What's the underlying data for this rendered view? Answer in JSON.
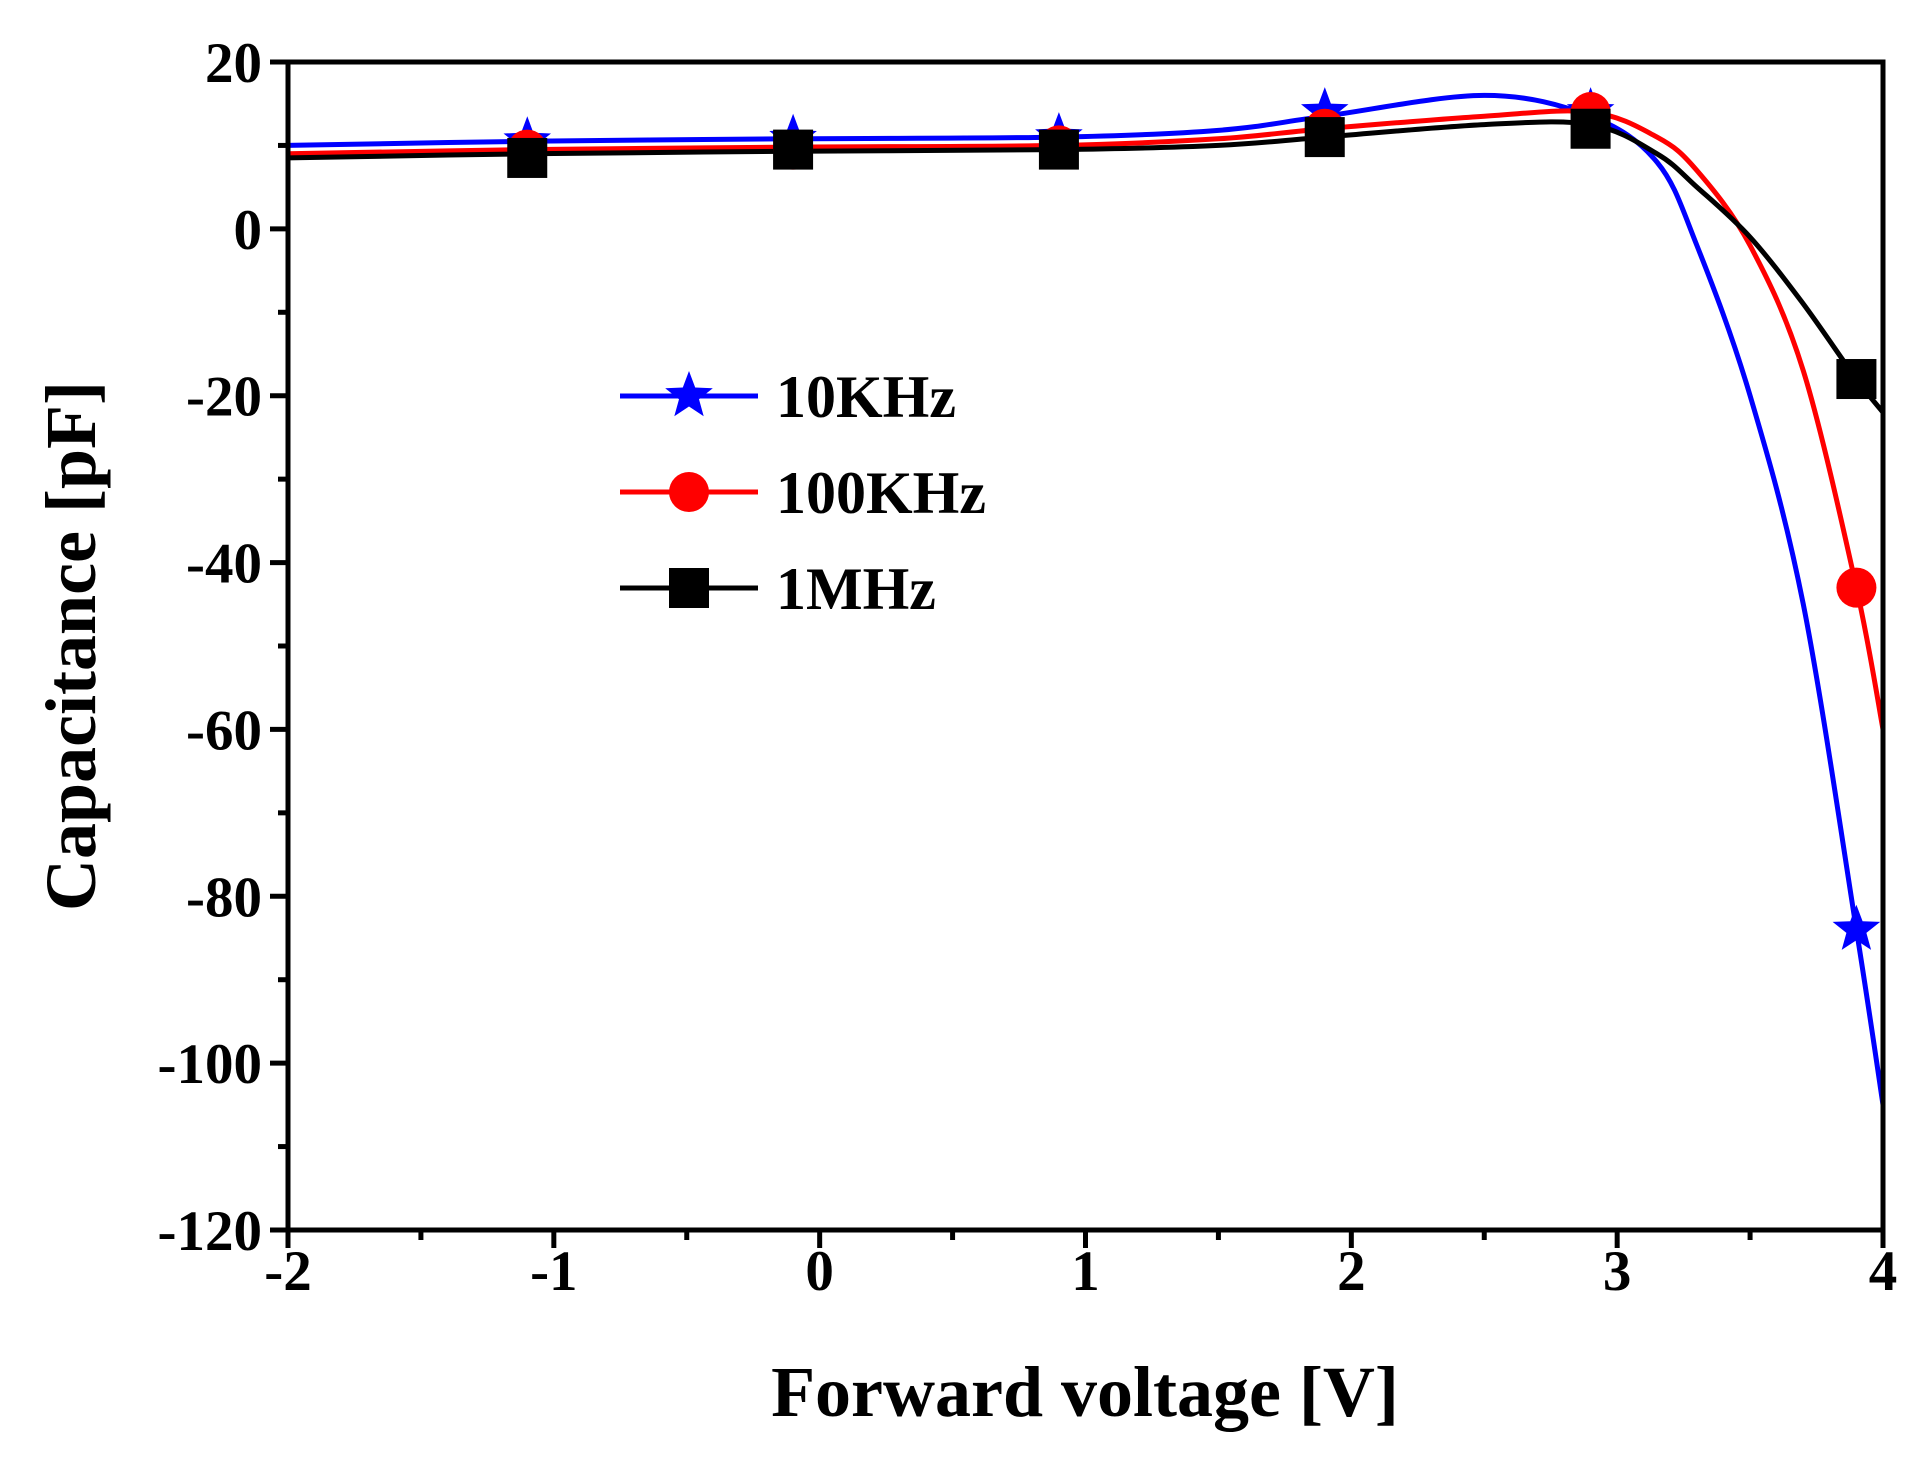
{
  "chart_data": {
    "type": "line",
    "title": "",
    "xlabel": "Forward voltage [V]",
    "ylabel": "Capacitance [pF]",
    "xlim": [
      -2,
      4
    ],
    "ylim": [
      -120,
      20
    ],
    "x_ticks": [
      -2,
      -1,
      0,
      1,
      2,
      3,
      4
    ],
    "x_tick_labels": [
      "-2",
      "-1",
      "0",
      "1",
      "2",
      "3",
      "4"
    ],
    "y_ticks": [
      20,
      0,
      -20,
      -40,
      -60,
      -80,
      -100,
      -120
    ],
    "y_tick_labels": [
      "20",
      "0",
      "-20",
      "-40",
      "-60",
      "-80",
      "-100",
      "-120"
    ],
    "grid": false,
    "legend_position": "center-left",
    "series": [
      {
        "name": "10KHz",
        "color": "#0000ff",
        "marker": "star",
        "curve_x": [
          -2,
          -1.1,
          -0.1,
          0.9,
          1.5,
          1.9,
          2.5,
          2.9,
          3.15,
          3.3,
          3.5,
          3.7,
          3.9,
          4.0
        ],
        "curve_y": [
          10,
          10.5,
          10.8,
          11,
          11.8,
          13.5,
          16,
          13.5,
          8,
          -2,
          -20,
          -45,
          -84,
          -105
        ],
        "marker_x": [
          -1.1,
          -0.1,
          0.9,
          1.9,
          2.9,
          3.9
        ],
        "marker_y": [
          10.5,
          10.8,
          11,
          14,
          14,
          -84
        ]
      },
      {
        "name": "100KHz",
        "color": "#ff0000",
        "marker": "circle",
        "curve_x": [
          -2,
          -1.1,
          -0.1,
          0.9,
          1.5,
          1.9,
          2.5,
          2.9,
          3.15,
          3.3,
          3.5,
          3.7,
          3.9,
          4.0
        ],
        "curve_y": [
          9,
          9.5,
          9.8,
          10,
          10.8,
          12,
          13.5,
          14,
          11,
          7,
          -2,
          -17,
          -43,
          -60
        ],
        "marker_x": [
          -1.1,
          -0.1,
          0.9,
          1.9,
          2.9,
          3.9
        ],
        "marker_y": [
          9.5,
          9.5,
          10,
          12,
          14,
          -43
        ]
      },
      {
        "name": "1MHz",
        "color": "#000000",
        "marker": "square",
        "curve_x": [
          -2,
          -1.1,
          -0.1,
          0.9,
          1.5,
          1.9,
          2.5,
          2.9,
          3.15,
          3.3,
          3.5,
          3.7,
          3.9,
          4.0
        ],
        "curve_y": [
          8.5,
          9,
          9.3,
          9.5,
          10,
          11,
          12.5,
          12.5,
          9,
          5,
          -1,
          -9,
          -18,
          -22
        ],
        "marker_x": [
          -1.1,
          -0.1,
          0.9,
          1.9,
          2.9,
          3.9
        ],
        "marker_y": [
          8.5,
          9.5,
          9.5,
          11,
          12,
          -18
        ]
      }
    ]
  }
}
